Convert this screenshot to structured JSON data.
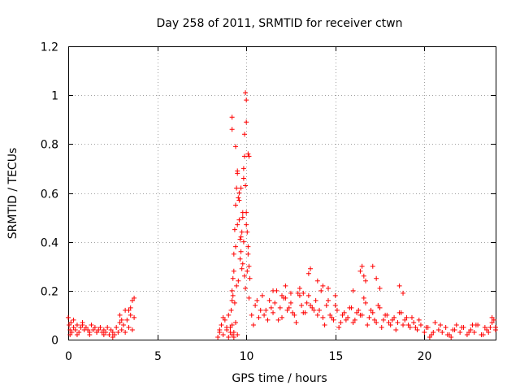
{
  "chart_data": {
    "type": "scatter",
    "title": "Day 258 of 2011, SRMTID for receiver ctwn",
    "xlabel": "GPS time / hours",
    "ylabel": "SRMTID / TECUs",
    "xlim": [
      0,
      24
    ],
    "ylim": [
      0,
      1.2
    ],
    "xticks": [
      0,
      5,
      10,
      15,
      20
    ],
    "xtick_labels": [
      "0",
      "5",
      "10",
      "15",
      "20"
    ],
    "yticks": [
      0,
      0.2,
      0.4,
      0.6,
      0.8,
      1.0,
      1.2
    ],
    "ytick_labels": [
      "0",
      "0.2",
      "0.4",
      "0.6",
      "0.8",
      "1",
      "1.2"
    ],
    "grid": true,
    "marker": "+",
    "color": "#ff0000",
    "series": [
      {
        "name": "SRMTID",
        "x": [
          0.0,
          0.05,
          0.1,
          0.15,
          0.2,
          0.3,
          0.4,
          0.5,
          0.6,
          0.7,
          0.8,
          0.9,
          1.0,
          1.1,
          1.2,
          1.3,
          1.4,
          1.5,
          1.6,
          1.7,
          1.8,
          1.9,
          2.0,
          2.1,
          2.2,
          2.3,
          2.4,
          2.5,
          2.6,
          2.7,
          2.8,
          2.9,
          3.0,
          3.1,
          3.2,
          3.3,
          3.4,
          3.5,
          3.6,
          3.7,
          0.1,
          0.3,
          0.5,
          0.8,
          1.2,
          1.6,
          2.0,
          2.5,
          2.9,
          3.2,
          3.5,
          3.6,
          3.7,
          3.0,
          3.4,
          8.4,
          8.5,
          8.6,
          8.7,
          8.8,
          8.9,
          9.0,
          9.1,
          9.2,
          9.3,
          9.4,
          9.5,
          8.5,
          8.7,
          8.9,
          9.0,
          9.1,
          9.2,
          9.3,
          9.15,
          9.2,
          9.25,
          9.3,
          9.35,
          9.4,
          9.45,
          9.5,
          9.55,
          9.6,
          9.65,
          9.7,
          9.75,
          9.8,
          9.85,
          9.9,
          9.95,
          10.0,
          10.05,
          10.1,
          10.15,
          10.2,
          9.2,
          9.3,
          9.4,
          9.5,
          9.6,
          9.7,
          9.8,
          9.9,
          10.0,
          10.1,
          9.25,
          9.45,
          9.65,
          9.85,
          10.05,
          9.35,
          9.55,
          9.75,
          9.95,
          10.15,
          9.95,
          10.0,
          10.0,
          9.9,
          9.2,
          9.2,
          9.85,
          10.1,
          10.15,
          9.4,
          9.5,
          9.6,
          9.7,
          9.8,
          10.3,
          10.5,
          10.7,
          10.9,
          11.1,
          11.3,
          11.5,
          11.7,
          11.9,
          12.1,
          12.3,
          12.5,
          12.7,
          12.9,
          13.1,
          13.3,
          13.5,
          13.7,
          13.9,
          14.1,
          14.3,
          14.5,
          14.7,
          14.9,
          15.1,
          15.3,
          15.5,
          15.7,
          15.9,
          16.1,
          16.3,
          16.5,
          16.7,
          16.9,
          17.1,
          17.3,
          17.5,
          17.7,
          17.9,
          18.1,
          18.3,
          18.5,
          18.7,
          18.9,
          19.1,
          19.3,
          19.5,
          10.4,
          10.8,
          11.2,
          11.6,
          12.0,
          12.4,
          12.8,
          13.2,
          13.6,
          14.0,
          14.4,
          14.8,
          15.2,
          15.6,
          16.0,
          16.4,
          16.8,
          17.2,
          17.6,
          18.0,
          18.4,
          18.8,
          19.2,
          10.6,
          11.0,
          11.4,
          11.8,
          12.2,
          12.6,
          13.0,
          13.4,
          13.8,
          14.2,
          14.6,
          15.0,
          15.4,
          15.8,
          16.2,
          16.6,
          17.0,
          17.4,
          17.8,
          18.2,
          18.6,
          19.0,
          19.4,
          12.2,
          12.5,
          13.0,
          13.5,
          13.6,
          14.0,
          14.3,
          14.6,
          16.4,
          16.5,
          16.6,
          16.7,
          17.1,
          17.3,
          17.5,
          18.6,
          18.8,
          11.5,
          12.0,
          13.2,
          15.0,
          16.0,
          19.6,
          19.8,
          20.0,
          20.2,
          20.4,
          20.6,
          20.8,
          21.0,
          21.2,
          21.4,
          21.6,
          21.8,
          22.0,
          22.2,
          22.4,
          22.6,
          22.8,
          23.0,
          23.2,
          23.4,
          23.6,
          23.8,
          24.0,
          19.7,
          20.1,
          20.5,
          20.9,
          21.3,
          21.7,
          22.1,
          22.5,
          22.9,
          23.3,
          23.7,
          23.9,
          21.5,
          22.7,
          23.5,
          23.8,
          24.0,
          20.3
        ],
        "y": [
          0.09,
          0.06,
          0.04,
          0.07,
          0.03,
          0.05,
          0.04,
          0.06,
          0.03,
          0.05,
          0.07,
          0.04,
          0.05,
          0.04,
          0.03,
          0.06,
          0.04,
          0.05,
          0.03,
          0.04,
          0.05,
          0.03,
          0.04,
          0.03,
          0.05,
          0.02,
          0.04,
          0.03,
          0.02,
          0.05,
          0.03,
          0.07,
          0.04,
          0.06,
          0.03,
          0.08,
          0.05,
          0.1,
          0.04,
          0.09,
          0.02,
          0.08,
          0.02,
          0.06,
          0.02,
          0.03,
          0.02,
          0.01,
          0.1,
          0.12,
          0.13,
          0.16,
          0.17,
          0.08,
          0.12,
          0.01,
          0.03,
          0.06,
          0.02,
          0.08,
          0.04,
          0.01,
          0.05,
          0.02,
          0.03,
          0.07,
          0.02,
          0.04,
          0.09,
          0.05,
          0.1,
          0.03,
          0.06,
          0.01,
          0.12,
          0.16,
          0.25,
          0.35,
          0.45,
          0.55,
          0.62,
          0.69,
          0.58,
          0.49,
          0.41,
          0.36,
          0.44,
          0.52,
          0.66,
          0.75,
          0.63,
          0.52,
          0.44,
          0.38,
          0.3,
          0.25,
          0.2,
          0.28,
          0.38,
          0.47,
          0.6,
          0.42,
          0.31,
          0.26,
          0.47,
          0.35,
          0.18,
          0.22,
          0.33,
          0.4,
          0.28,
          0.15,
          0.24,
          0.29,
          0.21,
          0.17,
          1.01,
          0.98,
          0.89,
          0.84,
          0.91,
          0.86,
          0.7,
          0.76,
          0.75,
          0.79,
          0.68,
          0.57,
          0.62,
          0.5,
          0.1,
          0.14,
          0.09,
          0.18,
          0.12,
          0.16,
          0.11,
          0.2,
          0.13,
          0.17,
          0.12,
          0.15,
          0.1,
          0.19,
          0.14,
          0.11,
          0.18,
          0.13,
          0.16,
          0.12,
          0.09,
          0.14,
          0.1,
          0.08,
          0.12,
          0.07,
          0.11,
          0.09,
          0.13,
          0.08,
          0.12,
          0.1,
          0.15,
          0.09,
          0.11,
          0.07,
          0.13,
          0.08,
          0.1,
          0.06,
          0.09,
          0.07,
          0.11,
          0.08,
          0.06,
          0.09,
          0.05,
          0.06,
          0.12,
          0.08,
          0.15,
          0.09,
          0.13,
          0.07,
          0.11,
          0.14,
          0.1,
          0.06,
          0.09,
          0.05,
          0.08,
          0.07,
          0.1,
          0.06,
          0.08,
          0.05,
          0.07,
          0.04,
          0.06,
          0.05,
          0.16,
          0.1,
          0.13,
          0.08,
          0.17,
          0.11,
          0.18,
          0.15,
          0.12,
          0.2,
          0.16,
          0.14,
          0.1,
          0.13,
          0.11,
          0.17,
          0.12,
          0.14,
          0.1,
          0.08,
          0.11,
          0.09,
          0.07,
          0.22,
          0.19,
          0.21,
          0.27,
          0.29,
          0.24,
          0.22,
          0.21,
          0.28,
          0.3,
          0.26,
          0.24,
          0.3,
          0.25,
          0.21,
          0.22,
          0.19,
          0.2,
          0.18,
          0.19,
          0.18,
          0.2,
          0.04,
          0.06,
          0.03,
          0.05,
          0.02,
          0.07,
          0.04,
          0.03,
          0.05,
          0.02,
          0.04,
          0.06,
          0.03,
          0.05,
          0.02,
          0.04,
          0.03,
          0.06,
          0.02,
          0.05,
          0.03,
          0.07,
          0.04,
          0.08,
          0.05,
          0.03,
          0.06,
          0.02,
          0.04,
          0.05,
          0.03,
          0.06,
          0.02,
          0.05,
          0.08,
          0.01,
          0.06,
          0.04,
          0.09,
          0.05,
          0.01
        ]
      }
    ]
  }
}
